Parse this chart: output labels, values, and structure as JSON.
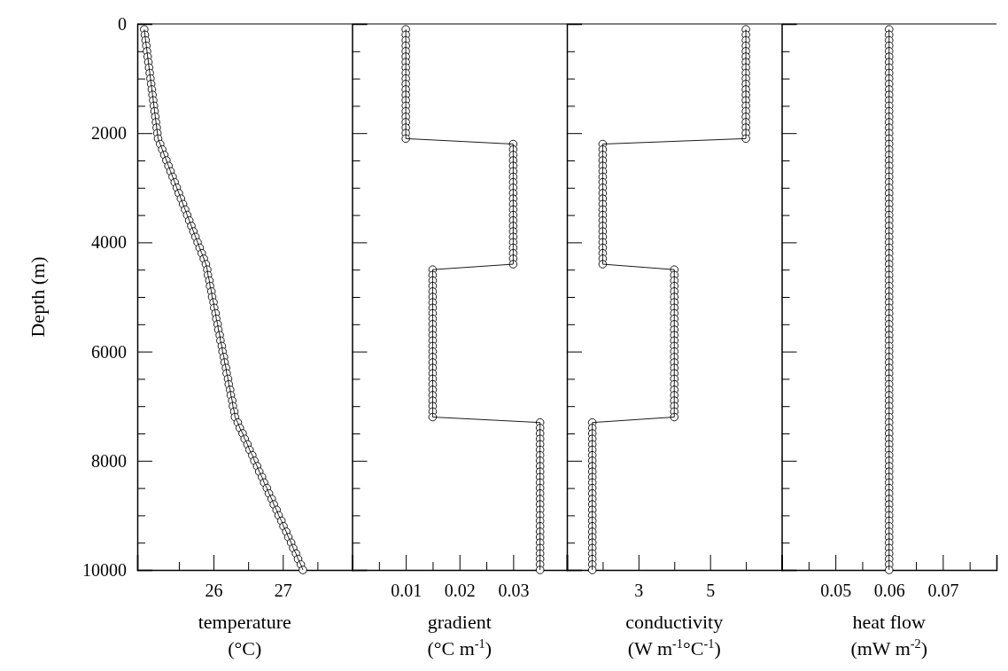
{
  "chart_data": [
    {
      "type": "line",
      "marker": "circle",
      "line_style": "solid",
      "xlabel": "temperature\n(°C)",
      "ylabel": "Depth (m)",
      "series": [
        {
          "color": "#000000",
          "x": [
            25.0,
            25.01,
            25.02,
            25.03,
            25.04,
            25.05,
            25.06,
            25.07,
            25.08,
            25.09,
            25.1,
            25.11,
            25.12,
            25.13,
            25.14,
            25.15,
            25.16,
            25.17,
            25.18,
            25.19,
            25.2,
            25.23,
            25.26,
            25.29,
            25.32,
            25.35,
            25.38,
            25.41,
            25.44,
            25.47,
            25.5,
            25.53,
            25.56,
            25.59,
            25.62,
            25.65,
            25.68,
            25.71,
            25.74,
            25.77,
            25.8,
            25.83,
            25.86,
            25.89,
            25.91,
            25.92,
            25.94,
            25.95,
            25.97,
            25.98,
            26.0,
            26.01,
            26.03,
            26.04,
            26.06,
            26.07,
            26.09,
            26.1,
            26.12,
            26.13,
            26.15,
            26.16,
            26.18,
            26.19,
            26.21,
            26.22,
            26.24,
            26.25,
            26.27,
            26.28,
            26.3,
            26.31,
            26.35,
            26.38,
            26.42,
            26.45,
            26.49,
            26.52,
            26.56,
            26.59,
            26.63,
            26.66,
            26.7,
            26.73,
            26.77,
            26.8,
            26.84,
            26.87,
            26.91,
            26.94,
            26.98,
            27.01,
            27.05,
            27.08,
            27.12,
            27.15,
            27.19,
            27.22,
            27.26,
            27.29
          ],
          "values": [
            100,
            200,
            300,
            400,
            500,
            600,
            700,
            800,
            900,
            1000,
            1100,
            1200,
            1300,
            1400,
            1500,
            1600,
            1700,
            1800,
            1900,
            2000,
            2100,
            2200,
            2300,
            2400,
            2500,
            2600,
            2700,
            2800,
            2900,
            3000,
            3100,
            3200,
            3300,
            3400,
            3500,
            3600,
            3700,
            3800,
            3900,
            4000,
            4100,
            4200,
            4300,
            4400,
            4500,
            4600,
            4700,
            4800,
            4900,
            5000,
            5100,
            5200,
            5300,
            5400,
            5500,
            5600,
            5700,
            5800,
            5900,
            6000,
            6100,
            6200,
            6300,
            6400,
            6500,
            6600,
            6700,
            6800,
            6900,
            7000,
            7100,
            7200,
            7300,
            7400,
            7500,
            7600,
            7700,
            7800,
            7900,
            8000,
            8100,
            8200,
            8300,
            8400,
            8500,
            8600,
            8700,
            8800,
            8900,
            9000,
            9100,
            9200,
            9300,
            9400,
            9500,
            9600,
            9700,
            9800,
            9900,
            10000
          ]
        }
      ],
      "xlim": [
        24.9,
        28
      ],
      "xticks": [
        {
          "value": 25.5,
          "label": null
        },
        26,
        {
          "value": 26.5,
          "label": null
        },
        27,
        {
          "value": 27.5,
          "label": null
        }
      ],
      "ylim": [
        10000,
        0
      ],
      "yticks": [
        0,
        {
          "value": 500,
          "label": null
        },
        {
          "value": 1000,
          "label": null
        },
        {
          "value": 1500,
          "label": null
        },
        2000,
        {
          "value": 2500,
          "label": null
        },
        {
          "value": 3000,
          "label": null
        },
        {
          "value": 3500,
          "label": null
        },
        4000,
        {
          "value": 4500,
          "label": null
        },
        {
          "value": 5000,
          "label": null
        },
        {
          "value": 5500,
          "label": null
        },
        6000,
        {
          "value": 6500,
          "label": null
        },
        {
          "value": 7000,
          "label": null
        },
        {
          "value": 7500,
          "label": null
        },
        8000,
        {
          "value": 8500,
          "label": null
        },
        {
          "value": 9000,
          "label": null
        },
        {
          "value": 9500,
          "label": null
        },
        10000
      ]
    },
    {
      "type": "line",
      "marker": "circle",
      "line_style": "solid",
      "xlabel": "gradient\n(°C m$^{-1}$)",
      "tick_labels": "x",
      "series": [
        {
          "color": "#000000",
          "x": [
            0.01,
            0.01,
            0.01,
            0.01,
            0.01,
            0.01,
            0.01,
            0.01,
            0.01,
            0.01,
            0.01,
            0.01,
            0.01,
            0.01,
            0.01,
            0.01,
            0.01,
            0.01,
            0.01,
            0.01,
            0.01,
            0.03,
            0.03,
            0.03,
            0.03,
            0.03,
            0.03,
            0.03,
            0.03,
            0.03,
            0.03,
            0.03,
            0.03,
            0.03,
            0.03,
            0.03,
            0.03,
            0.03,
            0.03,
            0.03,
            0.03,
            0.03,
            0.03,
            0.03,
            0.015,
            0.015,
            0.015,
            0.015,
            0.015,
            0.015,
            0.015,
            0.015,
            0.015,
            0.015,
            0.015,
            0.015,
            0.015,
            0.015,
            0.015,
            0.015,
            0.015,
            0.015,
            0.015,
            0.015,
            0.015,
            0.015,
            0.015,
            0.015,
            0.015,
            0.015,
            0.015,
            0.015,
            0.035,
            0.035,
            0.035,
            0.035,
            0.035,
            0.035,
            0.035,
            0.035,
            0.035,
            0.035,
            0.035,
            0.035,
            0.035,
            0.035,
            0.035,
            0.035,
            0.035,
            0.035,
            0.035,
            0.035,
            0.035,
            0.035,
            0.035,
            0.035,
            0.035,
            0.035,
            0.035,
            0.035
          ],
          "values": [
            100,
            200,
            300,
            400,
            500,
            600,
            700,
            800,
            900,
            1000,
            1100,
            1200,
            1300,
            1400,
            1500,
            1600,
            1700,
            1800,
            1900,
            2000,
            2100,
            2200,
            2300,
            2400,
            2500,
            2600,
            2700,
            2800,
            2900,
            3000,
            3100,
            3200,
            3300,
            3400,
            3500,
            3600,
            3700,
            3800,
            3900,
            4000,
            4100,
            4200,
            4300,
            4400,
            4500,
            4600,
            4700,
            4800,
            4900,
            5000,
            5100,
            5200,
            5300,
            5400,
            5500,
            5600,
            5700,
            5800,
            5900,
            6000,
            6100,
            6200,
            6300,
            6400,
            6500,
            6600,
            6700,
            6800,
            6900,
            7000,
            7100,
            7200,
            7300,
            7400,
            7500,
            7600,
            7700,
            7800,
            7900,
            8000,
            8100,
            8200,
            8300,
            8400,
            8500,
            8600,
            8700,
            8800,
            8900,
            9000,
            9100,
            9200,
            9300,
            9400,
            9500,
            9600,
            9700,
            9800,
            9900,
            10000
          ]
        }
      ],
      "xlim": [
        0,
        0.04
      ],
      "xticks": [
        {
          "value": 0.005,
          "label": null
        },
        0.01,
        {
          "value": 0.015,
          "label": null
        },
        0.02,
        {
          "value": 0.025,
          "label": null
        },
        0.03,
        {
          "value": 0.035,
          "label": null
        }
      ],
      "ylim": [
        10000,
        0
      ],
      "yticks": [
        0,
        {
          "value": 500,
          "label": null
        },
        {
          "value": 1000,
          "label": null
        },
        {
          "value": 1500,
          "label": null
        },
        2000,
        {
          "value": 2500,
          "label": null
        },
        {
          "value": 3000,
          "label": null
        },
        {
          "value": 3500,
          "label": null
        },
        4000,
        {
          "value": 4500,
          "label": null
        },
        {
          "value": 5000,
          "label": null
        },
        {
          "value": 5500,
          "label": null
        },
        6000,
        {
          "value": 6500,
          "label": null
        },
        {
          "value": 7000,
          "label": null
        },
        {
          "value": 7500,
          "label": null
        },
        8000,
        {
          "value": 8500,
          "label": null
        },
        {
          "value": 9000,
          "label": null
        },
        {
          "value": 9500,
          "label": null
        },
        10000
      ]
    },
    {
      "type": "line",
      "marker": "circle",
      "line_style": "solid",
      "xlabel": "conductivity\n(W m$^{-1}$°C$^{-1}$)",
      "tick_labels": "x",
      "series": [
        {
          "color": "#000000",
          "x": [
            6,
            6,
            6,
            6,
            6,
            6,
            6,
            6,
            6,
            6,
            6,
            6,
            6,
            6,
            6,
            6,
            6,
            6,
            6,
            6,
            6,
            2,
            2,
            2,
            2,
            2,
            2,
            2,
            2,
            2,
            2,
            2,
            2,
            2,
            2,
            2,
            2,
            2,
            2,
            2,
            2,
            2,
            2,
            2,
            4,
            4,
            4,
            4,
            4,
            4,
            4,
            4,
            4,
            4,
            4,
            4,
            4,
            4,
            4,
            4,
            4,
            4,
            4,
            4,
            4,
            4,
            4,
            4,
            4,
            4,
            4,
            4,
            1.71,
            1.71,
            1.71,
            1.71,
            1.71,
            1.71,
            1.71,
            1.71,
            1.71,
            1.71,
            1.71,
            1.71,
            1.71,
            1.71,
            1.71,
            1.71,
            1.71,
            1.71,
            1.71,
            1.71,
            1.71,
            1.71,
            1.71,
            1.71,
            1.71,
            1.71,
            1.71,
            1.71
          ],
          "values": [
            100,
            200,
            300,
            400,
            500,
            600,
            700,
            800,
            900,
            1000,
            1100,
            1200,
            1300,
            1400,
            1500,
            1600,
            1700,
            1800,
            1900,
            2000,
            2100,
            2200,
            2300,
            2400,
            2500,
            2600,
            2700,
            2800,
            2900,
            3000,
            3100,
            3200,
            3300,
            3400,
            3500,
            3600,
            3700,
            3800,
            3900,
            4000,
            4100,
            4200,
            4300,
            4400,
            4500,
            4600,
            4700,
            4800,
            4900,
            5000,
            5100,
            5200,
            5300,
            5400,
            5500,
            5600,
            5700,
            5800,
            5900,
            6000,
            6100,
            6200,
            6300,
            6400,
            6500,
            6600,
            6700,
            6800,
            6900,
            7000,
            7100,
            7200,
            7300,
            7400,
            7500,
            7600,
            7700,
            7800,
            7900,
            8000,
            8100,
            8200,
            8300,
            8400,
            8500,
            8600,
            8700,
            8800,
            8900,
            9000,
            9100,
            9200,
            9300,
            9400,
            9500,
            9600,
            9700,
            9800,
            9900,
            10000
          ]
        }
      ],
      "xlim": [
        1,
        7
      ],
      "xticks": [
        {
          "value": 2,
          "label": null
        },
        3,
        {
          "value": 4,
          "label": null
        },
        5,
        {
          "value": 6,
          "label": null
        }
      ],
      "ylim": [
        10000,
        0
      ],
      "yticks": [
        0,
        {
          "value": 500,
          "label": null
        },
        {
          "value": 1000,
          "label": null
        },
        {
          "value": 1500,
          "label": null
        },
        2000,
        {
          "value": 2500,
          "label": null
        },
        {
          "value": 3000,
          "label": null
        },
        {
          "value": 3500,
          "label": null
        },
        4000,
        {
          "value": 4500,
          "label": null
        },
        {
          "value": 5000,
          "label": null
        },
        {
          "value": 5500,
          "label": null
        },
        6000,
        {
          "value": 6500,
          "label": null
        },
        {
          "value": 7000,
          "label": null
        },
        {
          "value": 7500,
          "label": null
        },
        8000,
        {
          "value": 8500,
          "label": null
        },
        {
          "value": 9000,
          "label": null
        },
        {
          "value": 9500,
          "label": null
        },
        10000
      ]
    },
    {
      "type": "line",
      "marker": "circle",
      "line_style": "solid",
      "xlabel": "heat flow\n(mW m$^{-2}$)",
      "tick_labels": "x",
      "series": [
        {
          "color": "#000000",
          "x": [
            0.06,
            0.06,
            0.06,
            0.06,
            0.06,
            0.06,
            0.06,
            0.06,
            0.06,
            0.06,
            0.06,
            0.06,
            0.06,
            0.06,
            0.06,
            0.06,
            0.06,
            0.06,
            0.06,
            0.06,
            0.06,
            0.06,
            0.06,
            0.06,
            0.06,
            0.06,
            0.06,
            0.06,
            0.06,
            0.06,
            0.06,
            0.06,
            0.06,
            0.06,
            0.06,
            0.06,
            0.06,
            0.06,
            0.06,
            0.06,
            0.06,
            0.06,
            0.06,
            0.06,
            0.06,
            0.06,
            0.06,
            0.06,
            0.06,
            0.06,
            0.06,
            0.06,
            0.06,
            0.06,
            0.06,
            0.06,
            0.06,
            0.06,
            0.06,
            0.06,
            0.06,
            0.06,
            0.06,
            0.06,
            0.06,
            0.06,
            0.06,
            0.06,
            0.06,
            0.06,
            0.06,
            0.06,
            0.06,
            0.06,
            0.06,
            0.06,
            0.06,
            0.06,
            0.06,
            0.06,
            0.06,
            0.06,
            0.06,
            0.06,
            0.06,
            0.06,
            0.06,
            0.06,
            0.06,
            0.06,
            0.06,
            0.06,
            0.06,
            0.06,
            0.06,
            0.06,
            0.06,
            0.06,
            0.06,
            0.06
          ],
          "values": [
            100,
            200,
            300,
            400,
            500,
            600,
            700,
            800,
            900,
            1000,
            1100,
            1200,
            1300,
            1400,
            1500,
            1600,
            1700,
            1800,
            1900,
            2000,
            2100,
            2200,
            2300,
            2400,
            2500,
            2600,
            2700,
            2800,
            2900,
            3000,
            3100,
            3200,
            3300,
            3400,
            3500,
            3600,
            3700,
            3800,
            3900,
            4000,
            4100,
            4200,
            4300,
            4400,
            4500,
            4600,
            4700,
            4800,
            4900,
            5000,
            5100,
            5200,
            5300,
            5400,
            5500,
            5600,
            5700,
            5800,
            5900,
            6000,
            6100,
            6200,
            6300,
            6400,
            6500,
            6600,
            6700,
            6800,
            6900,
            7000,
            7100,
            7200,
            7300,
            7400,
            7500,
            7600,
            7700,
            7800,
            7900,
            8000,
            8100,
            8200,
            8300,
            8400,
            8500,
            8600,
            8700,
            8800,
            8900,
            9000,
            9100,
            9200,
            9300,
            9400,
            9500,
            9600,
            9700,
            9800,
            9900,
            10000
          ]
        }
      ],
      "xlim": [
        0.04,
        0.08
      ],
      "xticks": [
        {
          "value": 0.045,
          "label": null
        },
        0.05,
        {
          "value": 0.055,
          "label": null
        },
        0.06,
        {
          "value": 0.065,
          "label": null
        },
        0.07,
        {
          "value": 0.075,
          "label": null
        }
      ],
      "ylim": [
        10000,
        0
      ],
      "yticks": [
        0,
        {
          "value": 500,
          "label": null
        },
        {
          "value": 1000,
          "label": null
        },
        {
          "value": 1500,
          "label": null
        },
        2000,
        {
          "value": 2500,
          "label": null
        },
        {
          "value": 3000,
          "label": null
        },
        {
          "value": 3500,
          "label": null
        },
        4000,
        {
          "value": 4500,
          "label": null
        },
        {
          "value": 5000,
          "label": null
        },
        {
          "value": 5500,
          "label": null
        },
        6000,
        {
          "value": 6500,
          "label": null
        },
        {
          "value": 7000,
          "label": null
        },
        {
          "value": 7500,
          "label": null
        },
        8000,
        {
          "value": 8500,
          "label": null
        },
        {
          "value": 9000,
          "label": null
        },
        {
          "value": 9500,
          "label": null
        },
        10000
      ]
    }
  ]
}
